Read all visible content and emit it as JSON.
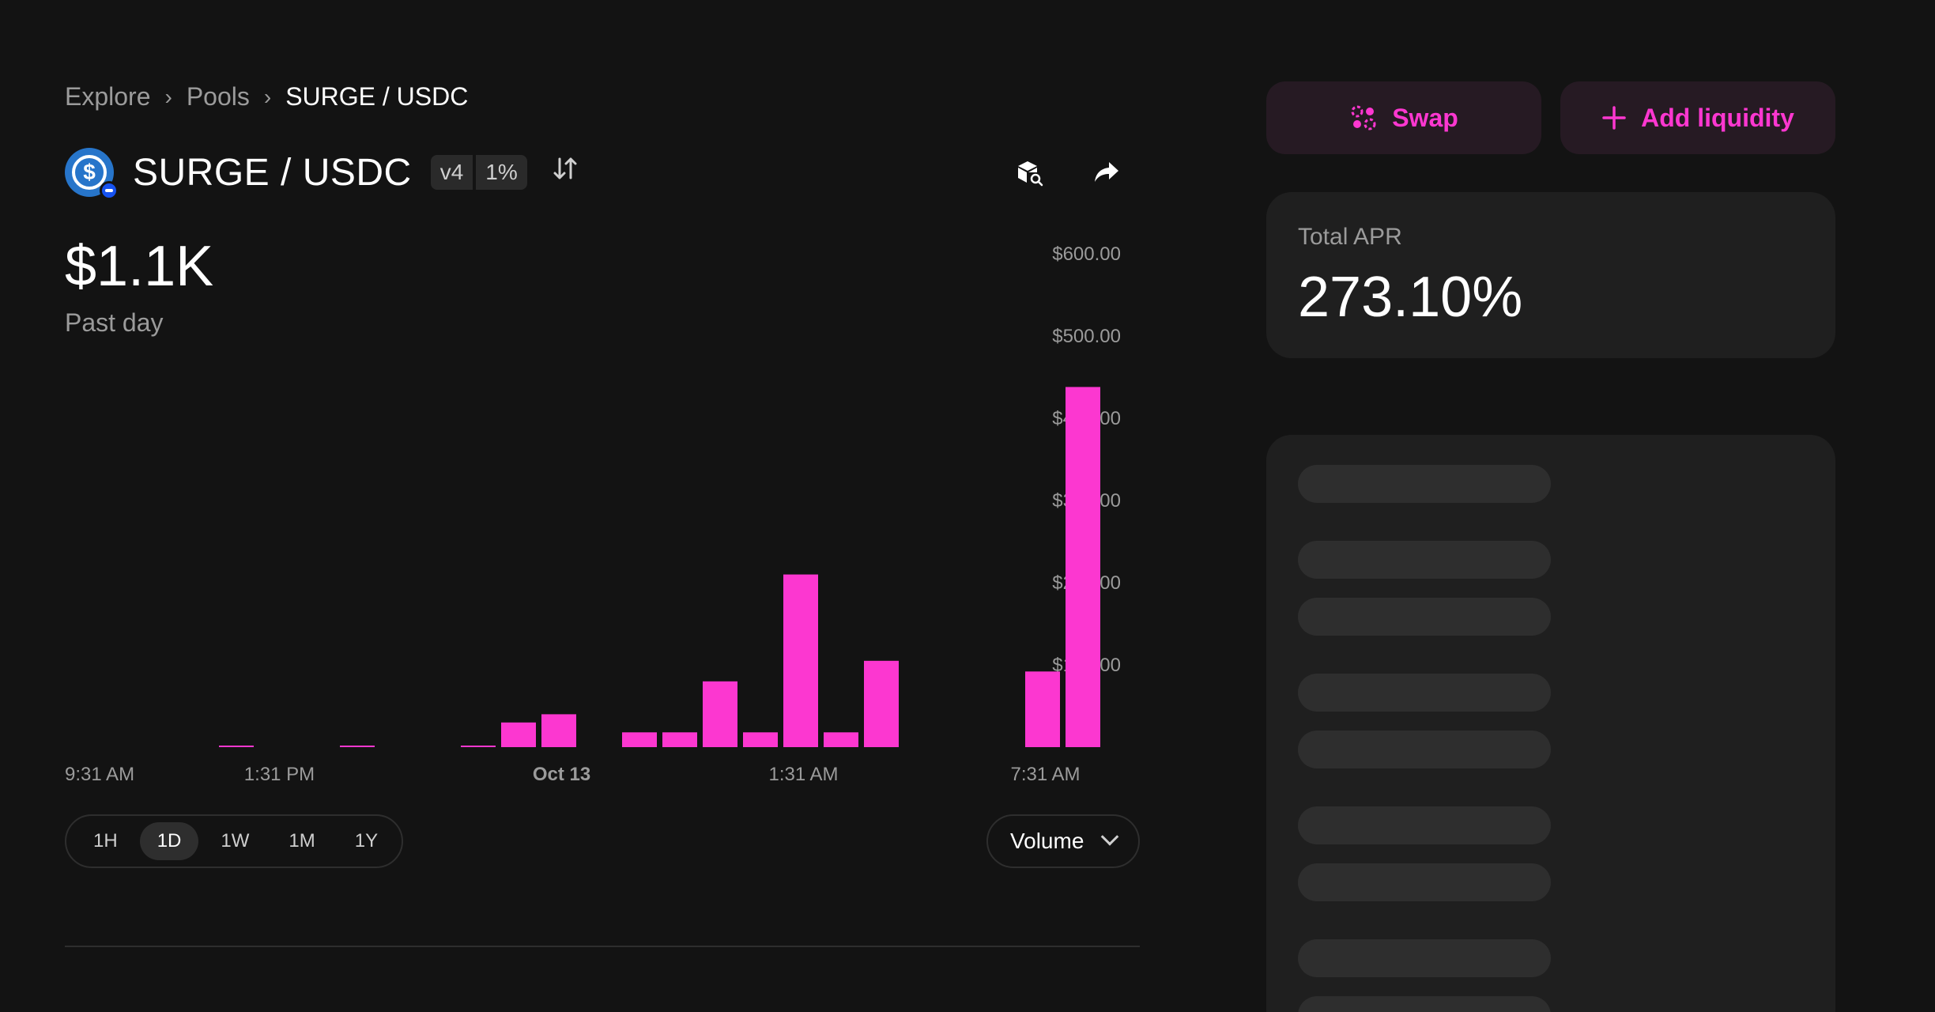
{
  "breadcrumb": {
    "items": [
      "Explore",
      "Pools",
      "SURGE / USDC"
    ],
    "separator": "›"
  },
  "pool": {
    "title": "SURGE / USDC",
    "version": "v4",
    "fee": "1%",
    "token_logo_icon": "usdc-logo-icon",
    "chain_icon": "base-chain-icon"
  },
  "header_icons": [
    "explorer-search-icon",
    "share-icon"
  ],
  "summary": {
    "value": "$1.1K",
    "period": "Past day"
  },
  "chart_data": {
    "type": "bar",
    "title": "",
    "color": "#fc37d0",
    "y_axis_side": "right",
    "ylim": [
      0,
      600
    ],
    "y_ticks": [
      "$600.00",
      "$500.00",
      "$400.00",
      "$300.00",
      "$200.00",
      "$100.00"
    ],
    "x_ticks": [
      {
        "label": "9:31 AM",
        "bold": false,
        "at": 0
      },
      {
        "label": "1:31 PM",
        "bold": false,
        "at": 3.5
      },
      {
        "label": "Oct 13",
        "bold": true,
        "at": 10.5
      },
      {
        "label": "1:31 AM",
        "bold": false,
        "at": 16.5
      },
      {
        "label": "7:31 AM",
        "bold": false,
        "at": 22.5
      }
    ],
    "bar_count": 24,
    "values": [
      0,
      0,
      1,
      0,
      0,
      1,
      0,
      0,
      1,
      30,
      40,
      0,
      18,
      18,
      80,
      18,
      210,
      18,
      105,
      0,
      0,
      0,
      92,
      438
    ]
  },
  "time_ranges": [
    "1H",
    "1D",
    "1W",
    "1M",
    "1Y"
  ],
  "time_range_selected": "1D",
  "metric_select": {
    "value": "Volume"
  },
  "actions": {
    "swap_label": "Swap",
    "add_liquidity_label": "Add liquidity",
    "accent_color": "#fc37d0"
  },
  "apr": {
    "label": "Total APR",
    "value": "273.10%"
  }
}
